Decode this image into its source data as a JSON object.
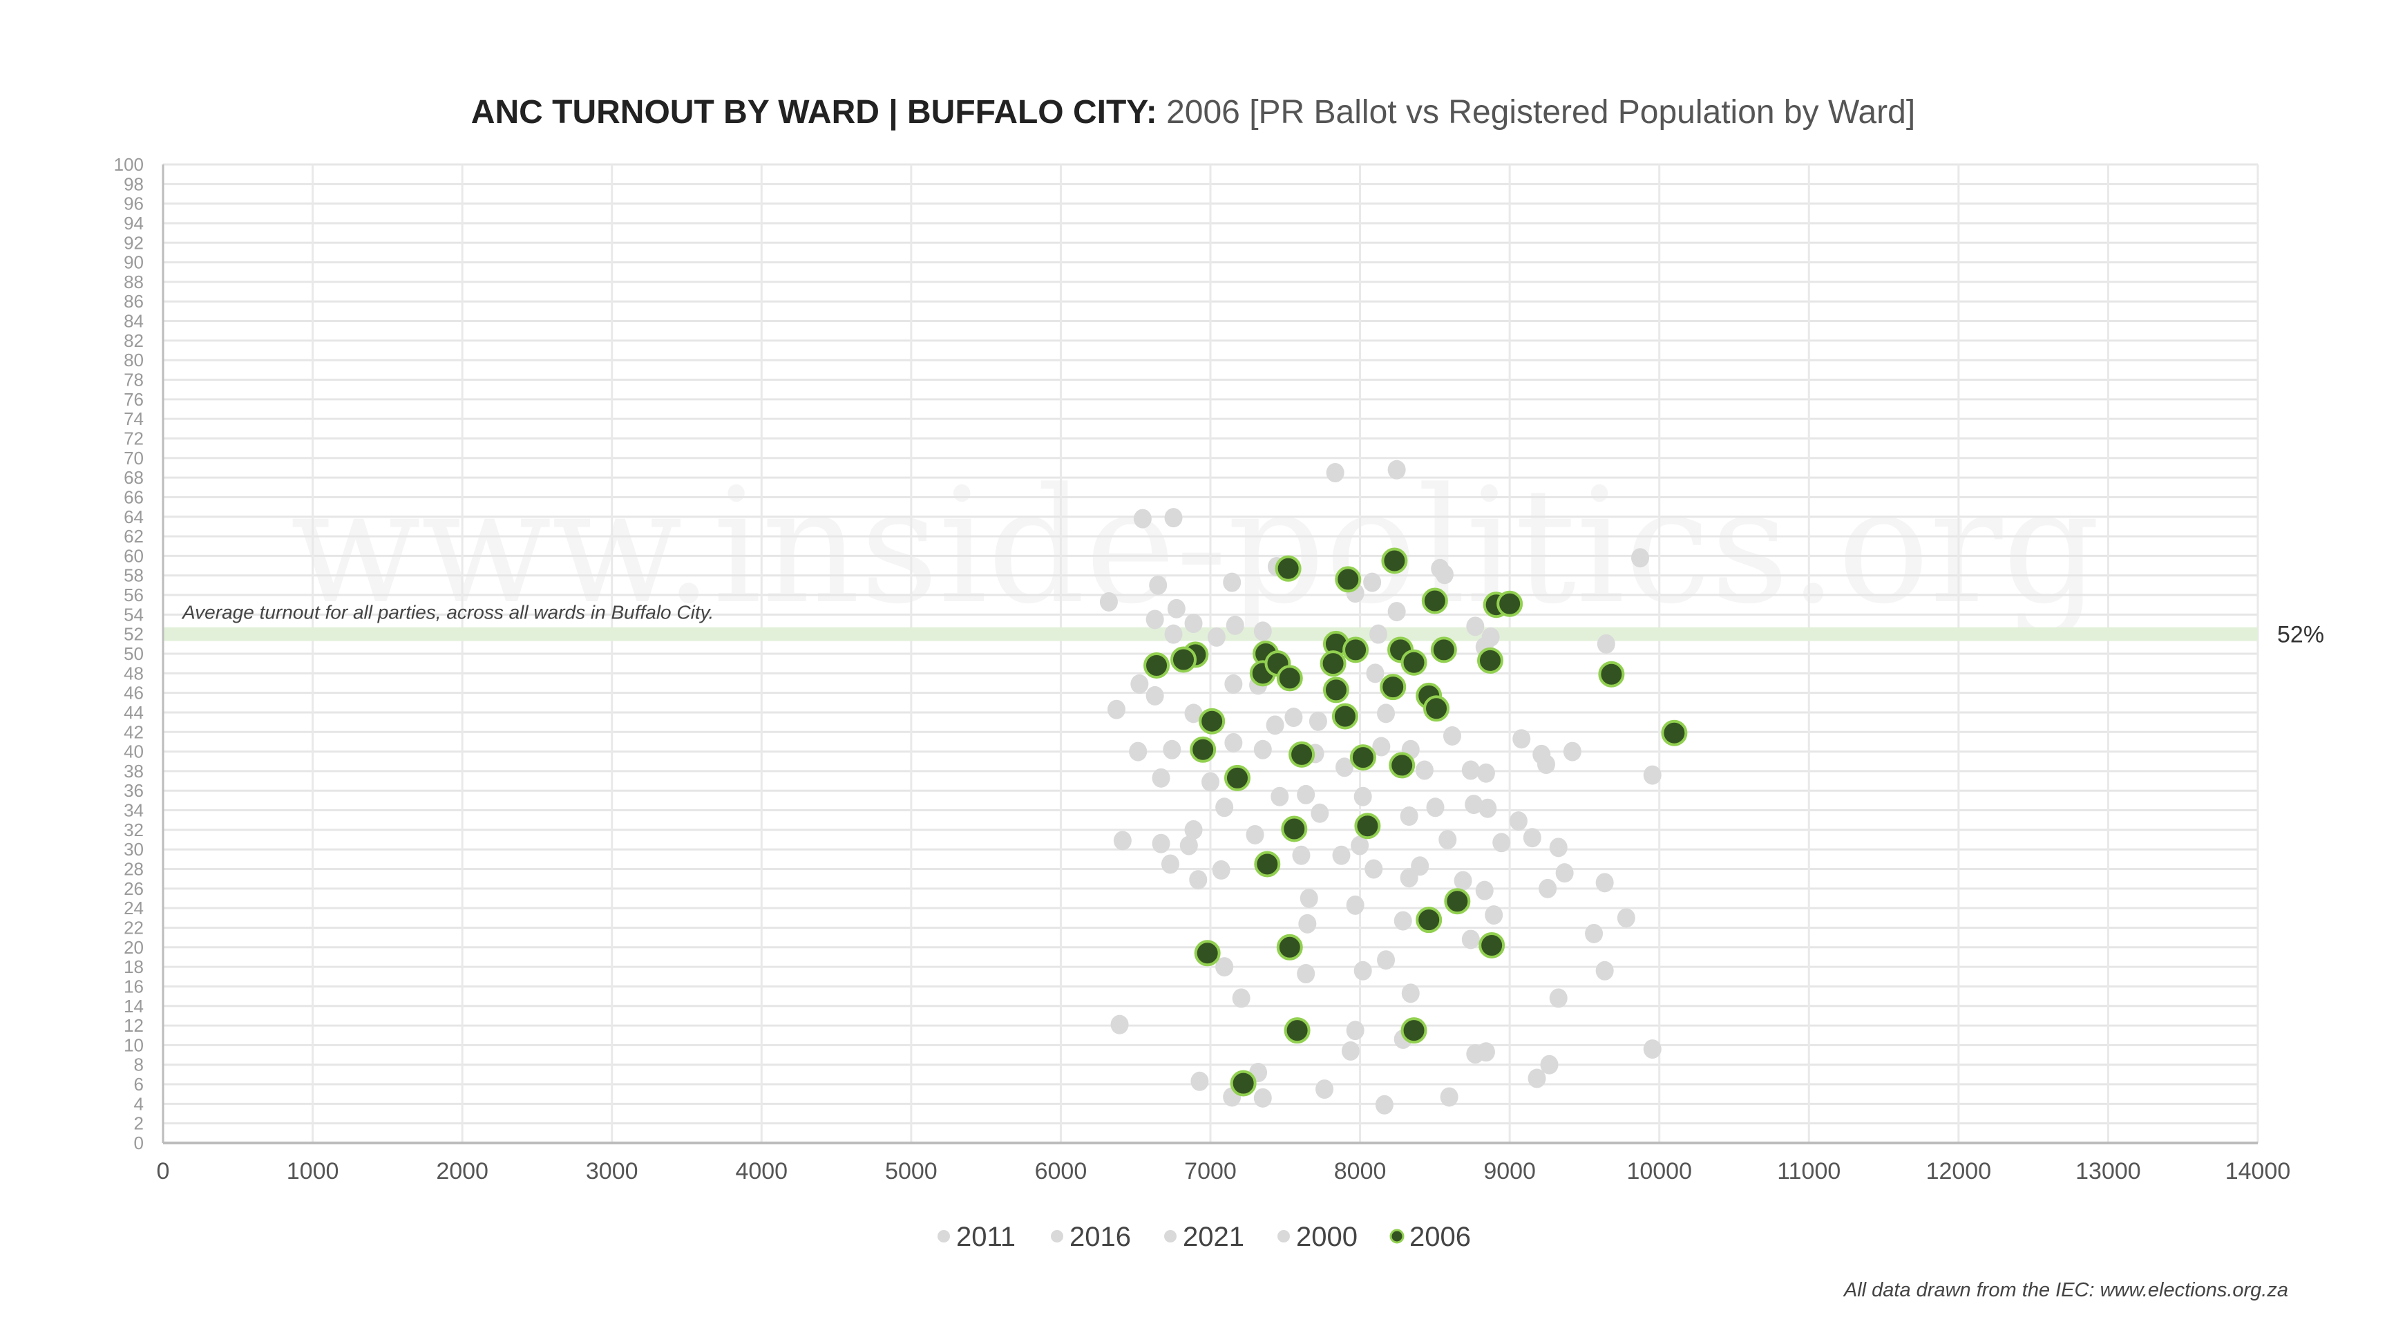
{
  "chart_data": {
    "type": "scatter",
    "title_bold": "ANC TURNOUT BY WARD | BUFFALO CITY:",
    "title_rest": " 2006 [PR Ballot vs Registered Population by Ward]",
    "xlabel": "",
    "ylabel": "",
    "xlim": [
      0,
      14000
    ],
    "ylim": [
      0,
      100
    ],
    "x_ticks": [
      0,
      1000,
      2000,
      3000,
      4000,
      5000,
      6000,
      7000,
      8000,
      9000,
      10000,
      11000,
      12000,
      13000,
      14000
    ],
    "y_ticks": [
      0,
      2,
      4,
      6,
      8,
      10,
      12,
      14,
      16,
      18,
      20,
      22,
      24,
      26,
      28,
      30,
      32,
      34,
      36,
      38,
      40,
      42,
      44,
      46,
      48,
      50,
      52,
      54,
      56,
      58,
      60,
      62,
      64,
      66,
      68,
      70,
      72,
      74,
      76,
      78,
      80,
      82,
      84,
      86,
      88,
      90,
      92,
      94,
      96,
      98,
      100
    ],
    "grid": true,
    "legend_placement": "bottom",
    "legend": [
      {
        "label": "2011",
        "color": "#d9d9d9",
        "highlight": false
      },
      {
        "label": "2016",
        "color": "#d9d9d9",
        "highlight": false
      },
      {
        "label": "2021",
        "color": "#d9d9d9",
        "highlight": false
      },
      {
        "label": "2000",
        "color": "#d9d9d9",
        "highlight": false
      },
      {
        "label": "2006",
        "color": "#335221",
        "stroke": "#92d050",
        "highlight": true
      }
    ],
    "highlight_series": {
      "name": "2006",
      "color": "#335221",
      "stroke": "#92d050",
      "points": [
        [
          7520,
          58.7
        ],
        [
          7920,
          57.6
        ],
        [
          8230,
          59.5
        ],
        [
          8500,
          55.4
        ],
        [
          8910,
          55.0
        ],
        [
          9000,
          55.1
        ],
        [
          6900,
          49.9
        ],
        [
          6640,
          48.8
        ],
        [
          6820,
          49.4
        ],
        [
          7370,
          50.0
        ],
        [
          7350,
          48.0
        ],
        [
          7450,
          49.0
        ],
        [
          7530,
          47.5
        ],
        [
          7840,
          51.0
        ],
        [
          7820,
          49.0
        ],
        [
          7970,
          50.4
        ],
        [
          7840,
          46.3
        ],
        [
          8270,
          50.4
        ],
        [
          8360,
          49.1
        ],
        [
          8560,
          50.4
        ],
        [
          8220,
          46.6
        ],
        [
          8460,
          45.7
        ],
        [
          8510,
          44.4
        ],
        [
          8870,
          49.3
        ],
        [
          9680,
          47.9
        ],
        [
          10100,
          41.9
        ],
        [
          7010,
          43.1
        ],
        [
          7900,
          43.6
        ],
        [
          6950,
          40.2
        ],
        [
          7610,
          39.7
        ],
        [
          8020,
          39.4
        ],
        [
          8280,
          38.6
        ],
        [
          7180,
          37.3
        ],
        [
          8050,
          32.4
        ],
        [
          7560,
          32.1
        ],
        [
          7380,
          28.5
        ],
        [
          8650,
          24.7
        ],
        [
          8460,
          22.8
        ],
        [
          7530,
          20.0
        ],
        [
          8880,
          20.2
        ],
        [
          6980,
          19.4
        ],
        [
          7580,
          11.5
        ],
        [
          8360,
          11.5
        ],
        [
          7220,
          6.1
        ]
      ]
    },
    "other_years": {
      "series_names": [
        "2011",
        "2016",
        "2021",
        "2000"
      ],
      "color": "#d9d9d9",
      "points": [
        [
          7834,
          68.5
        ],
        [
          8245,
          68.8
        ],
        [
          6547,
          63.8
        ],
        [
          6753,
          63.9
        ],
        [
          9872,
          59.8
        ],
        [
          7443,
          58.9
        ],
        [
          8534,
          58.7
        ],
        [
          8565,
          58.1
        ],
        [
          6650,
          57.0
        ],
        [
          7144,
          57.3
        ],
        [
          8081,
          57.3
        ],
        [
          6321,
          55.3
        ],
        [
          6773,
          54.6
        ],
        [
          8245,
          54.3
        ],
        [
          6629,
          53.5
        ],
        [
          6887,
          53.1
        ],
        [
          7165,
          52.9
        ],
        [
          7968,
          56.2
        ],
        [
          7350,
          52.3
        ],
        [
          6753,
          52.0
        ],
        [
          7041,
          51.7
        ],
        [
          8770,
          52.8
        ],
        [
          8873,
          51.7
        ],
        [
          9645,
          51.0
        ],
        [
          8122,
          52.0
        ],
        [
          8832,
          50.7
        ],
        [
          6526,
          46.9
        ],
        [
          6629,
          45.7
        ],
        [
          7154,
          46.9
        ],
        [
          7319,
          46.8
        ],
        [
          8101,
          48.0
        ],
        [
          6372,
          44.3
        ],
        [
          7556,
          43.5
        ],
        [
          7432,
          42.7
        ],
        [
          7720,
          43.1
        ],
        [
          8173,
          43.9
        ],
        [
          6887,
          43.9
        ],
        [
          8616,
          41.6
        ],
        [
          9079,
          41.3
        ],
        [
          6516,
          40.0
        ],
        [
          6743,
          40.2
        ],
        [
          7154,
          40.9
        ],
        [
          7350,
          40.2
        ],
        [
          7700,
          39.8
        ],
        [
          8142,
          40.5
        ],
        [
          8338,
          40.2
        ],
        [
          9213,
          39.7
        ],
        [
          9244,
          38.7
        ],
        [
          9419,
          40.0
        ],
        [
          9954,
          37.6
        ],
        [
          6670,
          37.3
        ],
        [
          7000,
          36.9
        ],
        [
          7896,
          38.4
        ],
        [
          8431,
          38.1
        ],
        [
          8740,
          38.1
        ],
        [
          8842,
          37.8
        ],
        [
          7093,
          34.3
        ],
        [
          7463,
          35.4
        ],
        [
          7638,
          35.6
        ],
        [
          7731,
          33.7
        ],
        [
          8019,
          35.4
        ],
        [
          8328,
          33.4
        ],
        [
          8503,
          34.3
        ],
        [
          8760,
          34.6
        ],
        [
          8853,
          34.2
        ],
        [
          9059,
          32.9
        ],
        [
          6413,
          30.9
        ],
        [
          6670,
          30.6
        ],
        [
          6887,
          32.0
        ],
        [
          6856,
          30.4
        ],
        [
          7298,
          31.5
        ],
        [
          7607,
          29.4
        ],
        [
          7875,
          29.4
        ],
        [
          7998,
          30.4
        ],
        [
          8091,
          28.0
        ],
        [
          8585,
          31.0
        ],
        [
          8945,
          30.7
        ],
        [
          9151,
          31.2
        ],
        [
          9326,
          30.2
        ],
        [
          9367,
          27.6
        ],
        [
          9635,
          26.6
        ],
        [
          9254,
          26.0
        ],
        [
          6732,
          28.5
        ],
        [
          6918,
          26.9
        ],
        [
          7072,
          27.9
        ],
        [
          7659,
          25.0
        ],
        [
          7968,
          24.3
        ],
        [
          8400,
          28.3
        ],
        [
          8328,
          27.1
        ],
        [
          8287,
          22.7
        ],
        [
          8688,
          26.8
        ],
        [
          8832,
          25.8
        ],
        [
          8894,
          23.3
        ],
        [
          9563,
          21.4
        ],
        [
          9779,
          23.0
        ],
        [
          8740,
          20.8
        ],
        [
          9635,
          17.6
        ],
        [
          7648,
          22.4
        ],
        [
          8173,
          18.7
        ],
        [
          8019,
          17.6
        ],
        [
          7093,
          18.0
        ],
        [
          7638,
          17.3
        ],
        [
          7206,
          14.8
        ],
        [
          8338,
          15.3
        ],
        [
          9326,
          14.8
        ],
        [
          6393,
          12.1
        ],
        [
          7968,
          11.5
        ],
        [
          8287,
          10.6
        ],
        [
          7937,
          9.4
        ],
        [
          8770,
          9.1
        ],
        [
          8842,
          9.3
        ],
        [
          9954,
          9.6
        ],
        [
          9265,
          8.0
        ],
        [
          9182,
          6.6
        ],
        [
          6928,
          6.3
        ],
        [
          7319,
          7.2
        ],
        [
          7144,
          4.7
        ],
        [
          7350,
          4.6
        ],
        [
          7762,
          5.5
        ],
        [
          8163,
          3.9
        ],
        [
          8596,
          4.7
        ]
      ]
    },
    "average_line": {
      "value": 52,
      "label": "52%",
      "annotation": "Average turnout for all parties, across all wards in Buffalo City.",
      "color": "#e2f0d9"
    },
    "watermark": "www.inside-politics.org",
    "footer": "All data drawn from the IEC: www.elections.org.za"
  }
}
